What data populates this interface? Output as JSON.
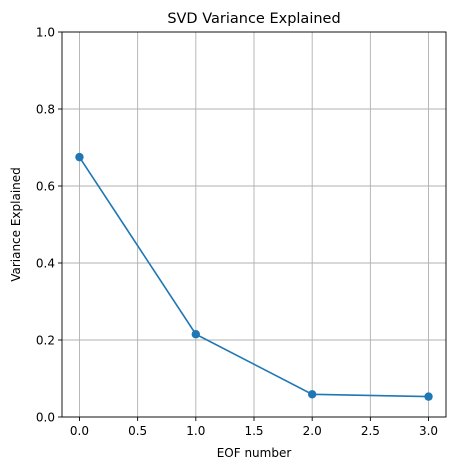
{
  "chart_data": {
    "type": "line",
    "title": "SVD Variance Explained",
    "xlabel": "EOF number",
    "ylabel": "Variance Explained",
    "xlim": [
      -0.15,
      3.15
    ],
    "ylim": [
      0,
      1
    ],
    "xticks": [
      0.0,
      0.5,
      1.0,
      1.5,
      2.0,
      2.5,
      3.0
    ],
    "xtick_labels": [
      "0.0",
      "0.5",
      "1.0",
      "1.5",
      "2.0",
      "2.5",
      "3.0"
    ],
    "yticks": [
      0.0,
      0.2,
      0.4,
      0.6,
      0.8,
      1.0
    ],
    "ytick_labels": [
      "0.0",
      "0.2",
      "0.4",
      "0.6",
      "0.8",
      "1.0"
    ],
    "grid": true,
    "series": [
      {
        "color": "#1f77b4",
        "marker": "circle",
        "x": [
          0,
          1,
          2,
          3
        ],
        "y": [
          0.675,
          0.215,
          0.059,
          0.053
        ]
      }
    ]
  }
}
